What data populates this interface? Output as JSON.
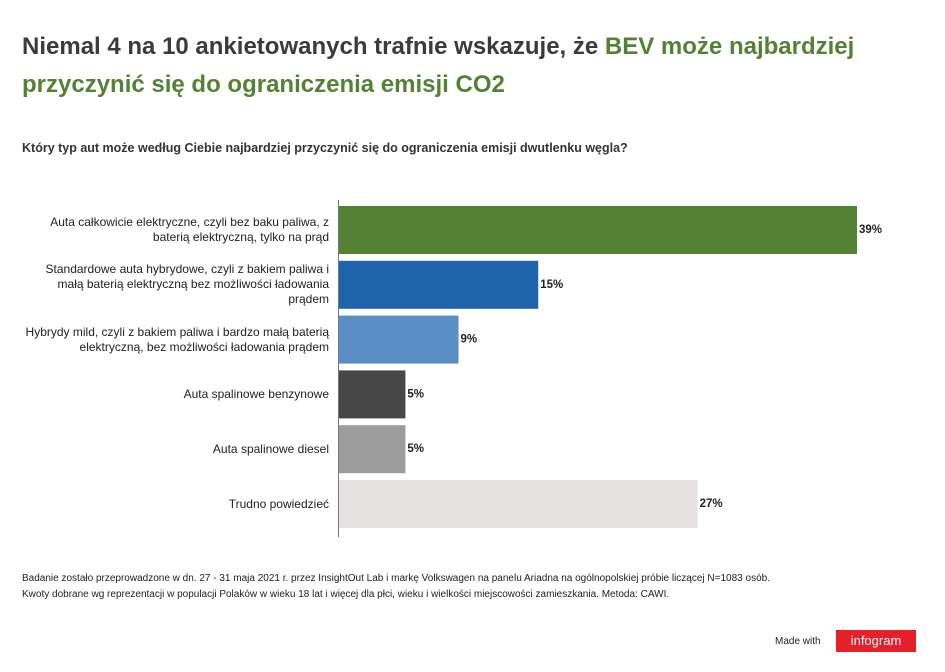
{
  "chart_data": {
    "type": "bar",
    "orientation": "horizontal",
    "title": "Niemal 4 na 10 ankietowanych trafnie wskazuje, że",
    "title_highlight": "BEV może najbardziej przyczynić się do ograniczenia emisji CO2",
    "subtitle": "Który typ aut może według Ciebie najbardziej przyczynić się do ograniczenia emisji dwutlenku węgla?",
    "categories": [
      "Auta całkowicie elektryczne, czyli bez baku paliwa, z baterią elektryczną, tylko na prąd",
      "Standardowe auta hybrydowe, czyli z bakiem paliwa i małą baterią elektryczną bez możliwości ładowania prądem",
      "Hybrydy mild, czyli z bakiem paliwa i bardzo małą baterią elektryczną, bez możliwości ładowania prądem",
      "Auta spalinowe benzynowe",
      "Auta spalinowe diesel",
      "Trudno powiedzieć"
    ],
    "values": [
      39,
      15,
      9,
      5,
      5,
      27
    ],
    "value_labels": [
      "39%",
      "15%",
      "9%",
      "5%",
      "5%",
      "27%"
    ],
    "colors": [
      "#548235",
      "#1f64ad",
      "#5a8ec7",
      "#474747",
      "#9d9d9d",
      "#e6e2e2"
    ],
    "xlim": [
      0,
      39
    ],
    "notes": [
      "Badanie zostało przeprowadzone w dn. 27 - 31 maja 2021 r. przez InsightOut Lab i markę Volkswagen na panelu Ariadna na ogólnopolskiej próbie liczącej N=1083 osób.",
      "Kwoty dobrane wg reprezentacji w populacji Polaków w wieku 18 lat i więcej dla płci, wieku i wielkości miejscowości zamieszkania. Metoda: CAWI."
    ],
    "made_with": "Made with",
    "brand": "infogram"
  }
}
